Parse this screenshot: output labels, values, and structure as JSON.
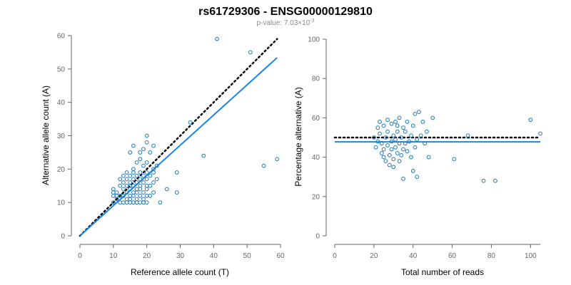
{
  "figure": {
    "title": "rs61729306 - ENSG00000129810",
    "subtitle_prefix": "p-value: 7.03×10",
    "subtitle_exponent": "-3"
  },
  "colors": {
    "points": "#1f78b4",
    "fit_line": "#1a85e6",
    "reference_line": "#000000",
    "axis": "#666666"
  },
  "chart_data": [
    {
      "type": "scatter",
      "xlabel": "Reference allele count (T)",
      "ylabel": "Alternative allele count (A)",
      "xlim": [
        0,
        60
      ],
      "ylim": [
        0,
        60
      ],
      "xticks": [
        "0",
        "10",
        "20",
        "30",
        "40",
        "50",
        "60"
      ],
      "yticks": [
        "0",
        "10",
        "20",
        "30",
        "40",
        "50",
        "60"
      ],
      "grid": false,
      "points": [
        [
          10,
          10
        ],
        [
          10,
          12
        ],
        [
          10,
          13
        ],
        [
          10,
          14
        ],
        [
          11,
          11
        ],
        [
          11,
          12
        ],
        [
          11,
          13
        ],
        [
          12,
          10
        ],
        [
          12,
          12
        ],
        [
          12,
          15
        ],
        [
          12,
          17
        ],
        [
          13,
          10
        ],
        [
          13,
          12
        ],
        [
          13,
          14
        ],
        [
          13,
          16
        ],
        [
          13,
          18
        ],
        [
          14,
          10
        ],
        [
          14,
          11
        ],
        [
          14,
          13
        ],
        [
          14,
          15
        ],
        [
          14,
          17
        ],
        [
          14,
          19
        ],
        [
          15,
          10
        ],
        [
          15,
          11
        ],
        [
          15,
          12
        ],
        [
          15,
          14
        ],
        [
          15,
          15
        ],
        [
          15,
          16
        ],
        [
          15,
          18
        ],
        [
          15,
          25
        ],
        [
          16,
          10
        ],
        [
          16,
          12
        ],
        [
          16,
          13
        ],
        [
          16,
          15
        ],
        [
          16,
          17
        ],
        [
          16,
          19
        ],
        [
          16,
          20
        ],
        [
          16,
          27
        ],
        [
          17,
          10
        ],
        [
          17,
          11
        ],
        [
          17,
          13
        ],
        [
          17,
          14
        ],
        [
          17,
          16
        ],
        [
          17,
          18
        ],
        [
          17,
          22
        ],
        [
          18,
          10
        ],
        [
          18,
          12
        ],
        [
          18,
          14
        ],
        [
          18,
          15
        ],
        [
          18,
          17
        ],
        [
          18,
          19
        ],
        [
          18,
          23
        ],
        [
          18,
          25
        ],
        [
          19,
          10
        ],
        [
          19,
          11
        ],
        [
          19,
          13
        ],
        [
          19,
          16
        ],
        [
          19,
          18
        ],
        [
          19,
          21
        ],
        [
          19,
          26
        ],
        [
          20,
          10
        ],
        [
          20,
          12
        ],
        [
          20,
          14
        ],
        [
          20,
          15
        ],
        [
          20,
          17
        ],
        [
          20,
          19
        ],
        [
          20,
          22
        ],
        [
          20,
          28
        ],
        [
          20,
          30
        ],
        [
          21,
          12
        ],
        [
          21,
          15
        ],
        [
          21,
          18
        ],
        [
          21,
          25
        ],
        [
          22,
          13
        ],
        [
          22,
          16
        ],
        [
          22,
          19
        ],
        [
          22,
          20
        ],
        [
          22,
          27
        ],
        [
          23,
          17
        ],
        [
          23,
          21
        ],
        [
          24,
          10
        ],
        [
          26,
          14
        ],
        [
          29,
          13
        ],
        [
          29,
          19
        ],
        [
          33,
          34
        ],
        [
          37,
          24
        ],
        [
          41,
          59
        ],
        [
          51,
          55
        ],
        [
          55,
          21
        ],
        [
          59,
          23
        ]
      ],
      "fit_line": {
        "slope": 0.905,
        "intercept": 0
      },
      "reference_line": {
        "slope": 1,
        "intercept": 0
      }
    },
    {
      "type": "scatter",
      "xlabel": "Total number of reads",
      "ylabel": "Percentage alternative (A)",
      "xlim": [
        0,
        105
      ],
      "ylim": [
        0,
        100
      ],
      "xticks": [
        "0",
        "20",
        "40",
        "60",
        "80",
        "100"
      ],
      "yticks": [
        "0",
        "20",
        "40",
        "60",
        "80",
        "100"
      ],
      "grid": false,
      "points": [
        [
          20,
          50
        ],
        [
          21,
          45
        ],
        [
          22,
          55
        ],
        [
          22,
          48
        ],
        [
          23,
          58
        ],
        [
          23,
          52
        ],
        [
          24,
          42
        ],
        [
          24,
          47
        ],
        [
          25,
          56
        ],
        [
          25,
          40
        ],
        [
          25,
          44
        ],
        [
          26,
          50
        ],
        [
          26,
          38
        ],
        [
          27,
          59
        ],
        [
          27,
          46
        ],
        [
          27,
          53
        ],
        [
          28,
          41
        ],
        [
          28,
          36
        ],
        [
          29,
          48
        ],
        [
          29,
          57
        ],
        [
          29,
          44
        ],
        [
          30,
          51
        ],
        [
          30,
          39
        ],
        [
          30,
          35
        ],
        [
          31,
          58
        ],
        [
          31,
          45
        ],
        [
          31,
          49
        ],
        [
          32,
          42
        ],
        [
          32,
          53
        ],
        [
          32,
          56
        ],
        [
          33,
          47
        ],
        [
          33,
          38
        ],
        [
          33,
          60
        ],
        [
          34,
          50
        ],
        [
          34,
          41
        ],
        [
          35,
          29
        ],
        [
          35,
          44
        ],
        [
          35,
          55
        ],
        [
          36,
          53
        ],
        [
          36,
          47
        ],
        [
          37,
          43
        ],
        [
          37,
          58
        ],
        [
          38,
          48
        ],
        [
          39,
          51
        ],
        [
          39,
          40
        ],
        [
          40,
          56
        ],
        [
          40,
          33
        ],
        [
          41,
          62
        ],
        [
          41,
          45
        ],
        [
          42,
          30
        ],
        [
          42,
          49
        ],
        [
          43,
          63
        ],
        [
          44,
          51
        ],
        [
          45,
          58
        ],
        [
          46,
          47
        ],
        [
          47,
          53
        ],
        [
          48,
          40
        ],
        [
          50,
          60
        ],
        [
          61,
          39
        ],
        [
          68,
          51
        ],
        [
          76,
          28
        ],
        [
          82,
          28
        ],
        [
          100,
          59
        ],
        [
          105,
          52
        ]
      ],
      "fit_line": {
        "y": 47.8
      },
      "reference_line": {
        "y": 50
      }
    }
  ]
}
